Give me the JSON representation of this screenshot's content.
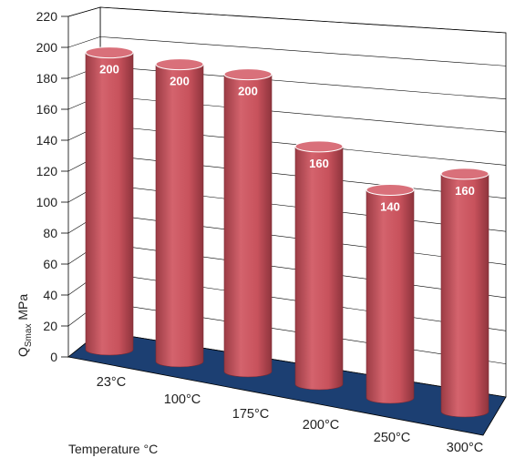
{
  "chart_data": {
    "type": "bar",
    "categories": [
      "23°C",
      "100°C",
      "175°C",
      "200°C",
      "250°C",
      "300°C"
    ],
    "values": [
      200,
      200,
      200,
      160,
      140,
      160
    ],
    "data_labels": [
      "200",
      "200",
      "200",
      "160",
      "140",
      "160"
    ],
    "ylim": [
      0,
      220
    ],
    "yticks": [
      "0",
      "20",
      "40",
      "60",
      "80",
      "100",
      "120",
      "140",
      "160",
      "180",
      "200",
      "220"
    ],
    "ylabel_main": "Q",
    "ylabel_sub": "Smax",
    "ylabel_unit": " MPa",
    "xlabel": "Temperature °C",
    "grid": true,
    "colors": {
      "bar": "#c8525c",
      "bar_top": "#d9707a",
      "floor": "#1c3f72",
      "grid": "#000000"
    }
  }
}
